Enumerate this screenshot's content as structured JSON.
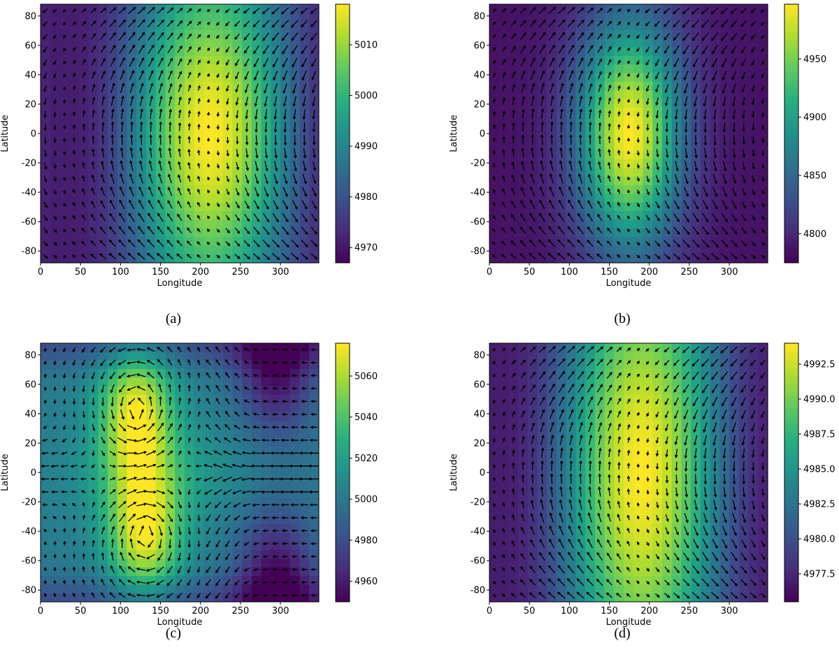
{
  "panels": [
    {
      "id": "a",
      "caption": "(a)",
      "xlabel": "Longitude",
      "ylabel": "Latitude",
      "x_ticks": [
        "0",
        "50",
        "100",
        "150",
        "200",
        "250",
        "300"
      ],
      "y_ticks": [
        "80",
        "60",
        "40",
        "20",
        "0",
        "-20",
        "-40",
        "-60",
        "-80"
      ],
      "colorbar_ticks": [
        "5010",
        "5000",
        "4990",
        "4980",
        "4970"
      ]
    },
    {
      "id": "b",
      "caption": "(b)",
      "xlabel": "Longitude",
      "ylabel": "Latitude",
      "x_ticks": [
        "0",
        "50",
        "100",
        "150",
        "200",
        "250",
        "300"
      ],
      "y_ticks": [
        "80",
        "60",
        "40",
        "20",
        "0",
        "-20",
        "-40",
        "-60",
        "-80"
      ],
      "colorbar_ticks": [
        "4950",
        "4900",
        "4850",
        "4800"
      ]
    },
    {
      "id": "c",
      "caption": "(c)",
      "xlabel": "Longitude",
      "ylabel": "Latitude",
      "x_ticks": [
        "0",
        "50",
        "100",
        "150",
        "200",
        "250",
        "300"
      ],
      "y_ticks": [
        "80",
        "60",
        "40",
        "20",
        "0",
        "-20",
        "-40",
        "-60",
        "-80"
      ],
      "colorbar_ticks": [
        "5060",
        "5040",
        "5020",
        "5000",
        "4980",
        "4960"
      ]
    },
    {
      "id": "d",
      "caption": "(d)",
      "xlabel": "Longitude",
      "ylabel": "Latitude",
      "x_ticks": [
        "0",
        "50",
        "100",
        "150",
        "200",
        "250",
        "300"
      ],
      "y_ticks": [
        "80",
        "60",
        "40",
        "20",
        "0",
        "-20",
        "-40",
        "-60",
        "-80"
      ],
      "colorbar_ticks": [
        "4992.5",
        "4990.0",
        "4987.5",
        "4985.0",
        "4982.5",
        "4980.0",
        "4977.5"
      ]
    }
  ],
  "chart_data": [
    {
      "type": "heatmap",
      "panel": "a",
      "xlabel": "Longitude",
      "ylabel": "Latitude",
      "xlim": [
        0,
        348
      ],
      "ylim": [
        -88,
        88
      ],
      "colormap": "viridis",
      "colorbar_range": [
        4967,
        5018
      ],
      "field": {
        "kind": "zonal_wave",
        "peak_lon": 212,
        "trough_lon": 30,
        "lat_scale": 70,
        "amplitude": 1
      },
      "arrows": "vector field overlaid (wind)"
    },
    {
      "type": "heatmap",
      "panel": "b",
      "xlabel": "Longitude",
      "ylabel": "Latitude",
      "xlim": [
        0,
        348
      ],
      "ylim": [
        -88,
        88
      ],
      "colormap": "viridis",
      "colorbar_range": [
        4775,
        4997
      ],
      "field": {
        "kind": "localized_bump",
        "peak_lon": 175,
        "lon_width": 45,
        "lat_scale": 55
      },
      "arrows": "vector field overlaid (wind)"
    },
    {
      "type": "heatmap",
      "panel": "c",
      "xlabel": "Longitude",
      "ylabel": "Latitude",
      "xlim": [
        0,
        348
      ],
      "ylim": [
        -88,
        88
      ],
      "colormap": "viridis",
      "colorbar_range": [
        4950,
        5076
      ],
      "field": {
        "kind": "twin_gyres",
        "gyre_lon": 120,
        "gyre_lat": 40,
        "low_lon": 295,
        "low_lat": 75
      },
      "arrows": "vector field overlaid (wind)"
    },
    {
      "type": "heatmap",
      "panel": "d",
      "xlabel": "Longitude",
      "ylabel": "Latitude",
      "xlim": [
        0,
        348
      ],
      "ylim": [
        -88,
        88
      ],
      "colormap": "viridis",
      "colorbar_range": [
        4975.5,
        4994
      ],
      "field": {
        "kind": "zonal_wave",
        "peak_lon": 190,
        "trough_lon": 10,
        "lat_scale": 95,
        "amplitude": 1
      },
      "arrows": "vector field overlaid (wind)"
    }
  ]
}
